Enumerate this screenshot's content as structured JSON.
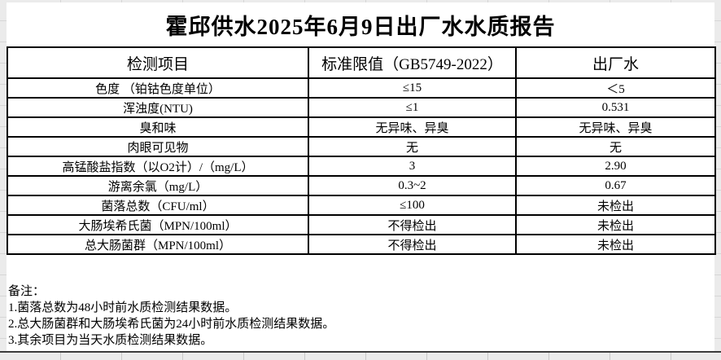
{
  "title": "霍邱供水2025年6月9日出厂水水质报告",
  "table": {
    "headers": {
      "item": "检测项目",
      "limit": "标准限值（GB5749-2022）",
      "out": "出厂水"
    },
    "rows": [
      {
        "item": "色度 （铂钴色度单位）",
        "limit": "≤15",
        "out": "＜5"
      },
      {
        "item": "浑浊度(NTU)",
        "limit": "≤1",
        "out": "0.531"
      },
      {
        "item": "臭和味",
        "limit": "无异味、异臭",
        "out": "无异味、异臭"
      },
      {
        "item": "肉眼可见物",
        "limit": "无",
        "out": "无"
      },
      {
        "item": "高锰酸盐指数（以O2计）/（mg/L）",
        "limit": "3",
        "out": "2.90"
      },
      {
        "item": "游离余氯（mg/L）",
        "limit": "0.3~2",
        "out": "0.67"
      },
      {
        "item": "菌落总数（CFU/ml）",
        "limit": "≤100",
        "out": "未检出"
      },
      {
        "item": "大肠埃希氏菌（MPN/100ml）",
        "limit": "不得检出",
        "out": "未检出"
      },
      {
        "item": "总大肠菌群（MPN/100ml）",
        "limit": "不得检出",
        "out": "未检出"
      }
    ]
  },
  "notes": {
    "label": "备注：",
    "items": [
      "1.菌落总数为48小时前水质检测结果数据。",
      "2.总大肠菌群和大肠埃希氏菌为24小时前水质检测结果数据。",
      "3.其余项目为当天水质检测结果数据。"
    ]
  }
}
